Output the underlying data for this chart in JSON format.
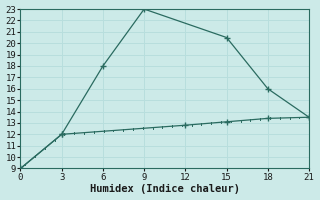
{
  "xlabel": "Humidex (Indice chaleur)",
  "line1_x": [
    0,
    3,
    6,
    9,
    15,
    18,
    21
  ],
  "line1_y": [
    9,
    12,
    18,
    23,
    20.5,
    16,
    13.5
  ],
  "line2_x": [
    0,
    3,
    12,
    15,
    18,
    21
  ],
  "line2_y": [
    9,
    12,
    12.8,
    13.1,
    13.4,
    13.5
  ],
  "line_color": "#2a6b60",
  "bg_color": "#cceae8",
  "grid_color": "#b8dedd",
  "ylim": [
    9,
    23
  ],
  "xlim": [
    0,
    21
  ],
  "yticks": [
    9,
    10,
    11,
    12,
    13,
    14,
    15,
    16,
    17,
    18,
    19,
    20,
    21,
    22,
    23
  ],
  "xticks": [
    0,
    3,
    6,
    9,
    12,
    15,
    18,
    21
  ],
  "tick_fontsize": 6.5,
  "xlabel_fontsize": 7.5
}
